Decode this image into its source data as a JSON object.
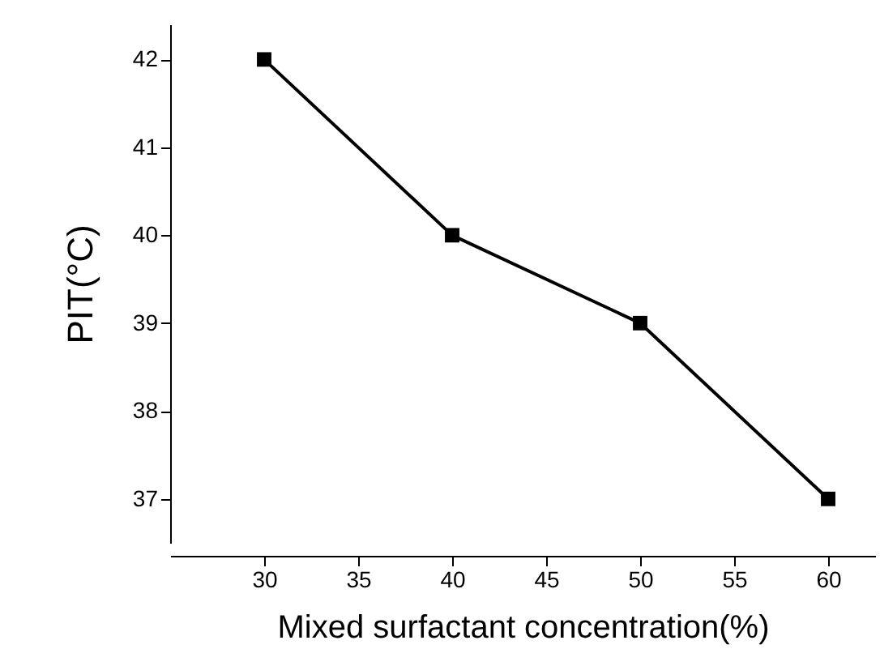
{
  "chart_data": {
    "type": "line",
    "xlabel": "Mixed surfactant concentration(%)",
    "ylabel": "PIT(°C)",
    "x": [
      30,
      40,
      50,
      60
    ],
    "series": [
      {
        "color": "#000000",
        "values": [
          42,
          40,
          39,
          37
        ]
      }
    ],
    "xlim": [
      25,
      62.5
    ],
    "xticks": [
      30,
      35,
      40,
      45,
      50,
      55,
      60
    ],
    "ylim": [
      36.5,
      42.4
    ],
    "yticks": [
      37,
      38,
      39,
      40,
      41,
      42
    ],
    "marker": "square",
    "line_style": "solid",
    "grid": false
  }
}
